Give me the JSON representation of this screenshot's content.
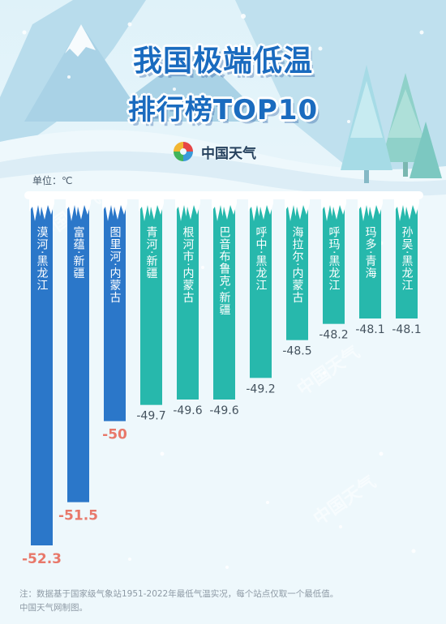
{
  "page": {
    "title_line1": "我国极端低温",
    "title_line2": "排行榜TOP10",
    "logo_text": "中国天气",
    "unit_label": "单位：℃",
    "note_line1": "注：数据基于国家级气象站1951-2022年最低气温实况，每个站点仅取一个最低值。",
    "note_line2": "中国天气网制图。",
    "watermark_text": "中国天气"
  },
  "colors": {
    "bar_top3": "#2b77c9",
    "bar_rest": "#27b8ac",
    "top3_value": "#e8786a",
    "rest_value": "#45535f",
    "title": "#1a6bbf"
  },
  "chart_data": {
    "type": "bar",
    "orientation": "vertical-downward",
    "categories": [
      "漠河·黑龙江",
      "富蕴·新疆",
      "图里河·内蒙古",
      "青河·新疆",
      "根河市·内蒙古",
      "巴音布鲁克·新疆",
      "呼中·黑龙江",
      "海拉尔·内蒙古",
      "呼玛·黑龙江",
      "玛多·青海",
      "孙吴·黑龙江"
    ],
    "values": [
      -52.3,
      -51.5,
      -50,
      -49.7,
      -49.6,
      -49.6,
      -49.2,
      -48.5,
      -48.2,
      -48.1,
      -48.1
    ],
    "value_labels": [
      "-52.3",
      "-51.5",
      "-50",
      "-49.7",
      "-49.6",
      "-49.6",
      "-49.2",
      "-48.5",
      "-48.2",
      "-48.1",
      "-48.1"
    ],
    "highlight_count": 3,
    "unit": "℃",
    "title": "我国极端低温排行榜TOP10"
  }
}
